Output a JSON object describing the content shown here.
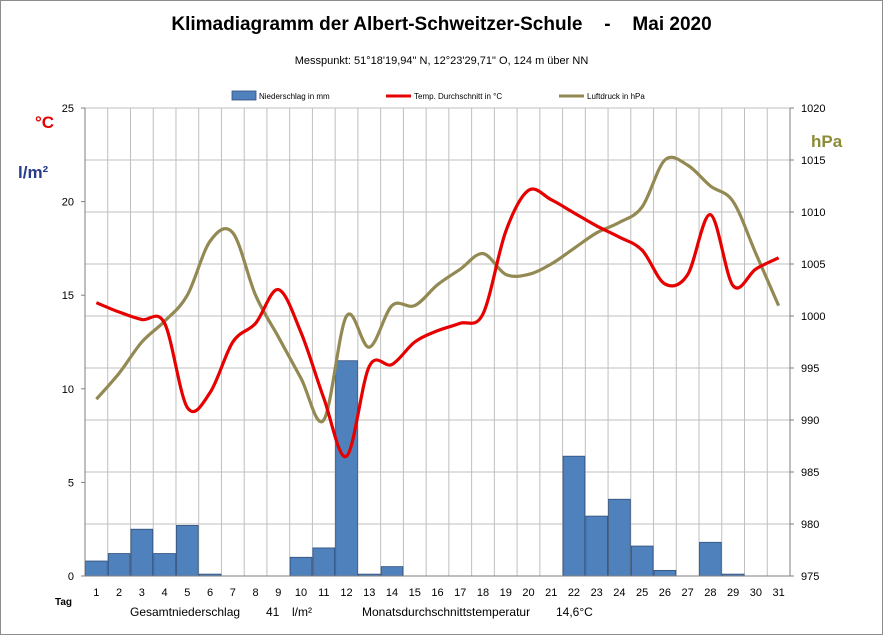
{
  "header": {
    "title_main": "Klimadiagramm der Albert-Schweitzer-Schule",
    "title_sep": "-",
    "title_month": "Mai 2020",
    "subtitle": "Messpunkt:  51°18'19,94\" N,  12°23'29,71\" O,  124 m über NN"
  },
  "units": {
    "celsius": "°C",
    "precip": "l/m²",
    "pressure": "hPa"
  },
  "footer": {
    "tag_label": "Tag",
    "total_label": "Gesamtniederschlag",
    "total_value": "41",
    "total_unit": "l/m²",
    "avg_label": "Monatsdurchschnittstemperatur",
    "avg_value": "14,6°C"
  },
  "colors": {
    "bars": "#4f81bd",
    "bar_border": "#2f4f7a",
    "temp": "#e60000",
    "pressure": "#938953",
    "grid": "#bfbfbf",
    "axis": "#7f7f7f"
  },
  "chart_data": {
    "type": "bar",
    "x": [
      1,
      2,
      3,
      4,
      5,
      6,
      7,
      8,
      9,
      10,
      11,
      12,
      13,
      14,
      15,
      16,
      17,
      18,
      19,
      20,
      21,
      22,
      23,
      24,
      25,
      26,
      27,
      28,
      29,
      30,
      31
    ],
    "left_axis": {
      "ylim": [
        0,
        25
      ],
      "ticks": [
        0,
        5,
        10,
        15,
        20,
        25
      ]
    },
    "right_axis": {
      "ylim": [
        975,
        1020
      ],
      "ticks": [
        975,
        980,
        985,
        990,
        995,
        1000,
        1005,
        1010,
        1015,
        1020
      ]
    },
    "legend_position": "top",
    "grid": true,
    "series": [
      {
        "name": "Niederschlag in mm",
        "type": "bar",
        "axis": "left",
        "values": [
          0.8,
          1.2,
          2.5,
          1.2,
          2.7,
          0.1,
          0,
          0,
          0,
          1.0,
          1.5,
          11.5,
          0.1,
          0.5,
          0,
          0,
          0,
          0,
          0,
          0,
          0,
          6.4,
          3.2,
          4.1,
          1.6,
          0.3,
          0,
          1.8,
          0.1,
          0,
          0
        ]
      },
      {
        "name": "Temp. Durchschnitt in °C",
        "type": "line",
        "axis": "left",
        "values": [
          14.6,
          14.1,
          13.7,
          13.5,
          9.0,
          9.8,
          12.5,
          13.5,
          15.3,
          13.0,
          9.5,
          6.4,
          11.2,
          11.3,
          12.5,
          13.1,
          13.5,
          14.0,
          18.4,
          20.6,
          20.1,
          19.4,
          18.7,
          18.1,
          17.4,
          15.6,
          16.1,
          19.3,
          15.5,
          16.4,
          17.0
        ]
      },
      {
        "name": "Luftdruck in hPa",
        "type": "line",
        "axis": "right",
        "values": [
          992.0,
          994.5,
          997.5,
          999.5,
          1002.0,
          1007.2,
          1008.0,
          1002.0,
          998.0,
          994.0,
          990.0,
          1000.0,
          997.0,
          1001.0,
          1001.0,
          1003.0,
          1004.5,
          1006.0,
          1004.0,
          1004.0,
          1005.0,
          1006.5,
          1008.0,
          1009.0,
          1010.5,
          1015.0,
          1014.5,
          1012.5,
          1011.0,
          1006.0,
          1001.0
        ]
      }
    ]
  }
}
